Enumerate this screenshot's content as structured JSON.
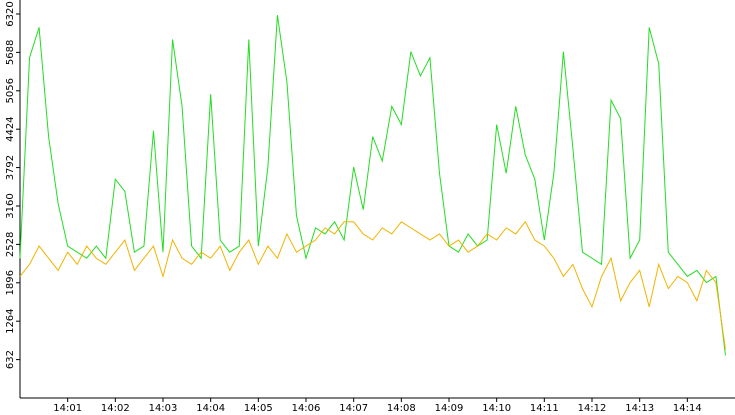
{
  "chart_data": {
    "type": "line",
    "x": [
      0,
      0.2,
      0.4,
      0.6,
      0.8,
      1,
      1.2,
      1.4,
      1.6,
      1.8,
      2,
      2.2,
      2.4,
      2.6,
      2.8,
      3,
      3.2,
      3.4,
      3.6,
      3.8,
      4,
      4.2,
      4.4,
      4.6,
      4.8,
      5,
      5.2,
      5.4,
      5.6,
      5.8,
      6,
      6.2,
      6.4,
      6.6,
      6.8,
      7,
      7.2,
      7.4,
      7.6,
      7.8,
      8,
      8.2,
      8.4,
      8.6,
      8.8,
      9,
      9.2,
      9.4,
      9.6,
      9.8,
      10,
      10.2,
      10.4,
      10.6,
      10.8,
      11,
      11.2,
      11.4,
      11.6,
      11.8,
      12,
      12.2,
      12.4,
      12.6,
      12.8,
      13,
      13.2,
      13.4,
      13.6,
      13.8,
      14,
      14.2,
      14.4,
      14.6,
      14.8
    ],
    "series": [
      {
        "color": "#22dd22",
        "values": [
          2300,
          5600,
          6100,
          4300,
          3200,
          2500,
          2400,
          2300,
          2500,
          2300,
          3600,
          3400,
          2400,
          2500,
          4400,
          2400,
          5900,
          4800,
          2500,
          2300,
          5000,
          2600,
          2400,
          2500,
          5900,
          2500,
          3800,
          6300,
          5200,
          3000,
          2300,
          2800,
          2700,
          2900,
          2600,
          3800,
          3100,
          4300,
          3900,
          4800,
          4500,
          5700,
          5300,
          5600,
          3700,
          2500,
          2400,
          2700,
          2500,
          2600,
          4500,
          3700,
          4800,
          4000,
          3600,
          2600,
          3700,
          5700,
          4100,
          2400,
          2300,
          2200,
          4900,
          4600,
          2300,
          2600,
          6100,
          5500,
          2400,
          2200,
          2000,
          2100,
          1900,
          2000,
          700
        ]
      },
      {
        "color": "#f0b400",
        "values": [
          2000,
          2200,
          2500,
          2300,
          2100,
          2400,
          2200,
          2500,
          2300,
          2200,
          2400,
          2600,
          2100,
          2300,
          2500,
          2000,
          2600,
          2300,
          2200,
          2400,
          2300,
          2500,
          2100,
          2400,
          2600,
          2200,
          2500,
          2300,
          2700,
          2400,
          2500,
          2600,
          2800,
          2700,
          2900,
          2900,
          2700,
          2600,
          2800,
          2700,
          2900,
          2800,
          2700,
          2600,
          2700,
          2500,
          2600,
          2400,
          2500,
          2700,
          2600,
          2800,
          2700,
          2900,
          2600,
          2500,
          2300,
          2000,
          2200,
          1800,
          1500,
          2000,
          2300,
          1600,
          1900,
          2100,
          1500,
          2200,
          1800,
          2000,
          1900,
          1600,
          2100,
          1900,
          800
        ]
      }
    ],
    "xlim": [
      0,
      15
    ],
    "xticks": [
      {
        "value": 1,
        "label": "14:01"
      },
      {
        "value": 2,
        "label": "14:02"
      },
      {
        "value": 3,
        "label": "14:03"
      },
      {
        "value": 4,
        "label": "14:04"
      },
      {
        "value": 5,
        "label": "14:05"
      },
      {
        "value": 6,
        "label": "14:06"
      },
      {
        "value": 7,
        "label": "14:07"
      },
      {
        "value": 8,
        "label": "14:08"
      },
      {
        "value": 9,
        "label": "14:09"
      },
      {
        "value": 10,
        "label": "14:10"
      },
      {
        "value": 11,
        "label": "14:11"
      },
      {
        "value": 12,
        "label": "14:12"
      },
      {
        "value": 13,
        "label": "14:13"
      },
      {
        "value": 14,
        "label": "14:14"
      }
    ],
    "ylim": [
      0,
      6550
    ],
    "yticks": [
      632,
      1264,
      1896,
      2528,
      3160,
      3792,
      4424,
      5056,
      5688,
      6320
    ]
  }
}
